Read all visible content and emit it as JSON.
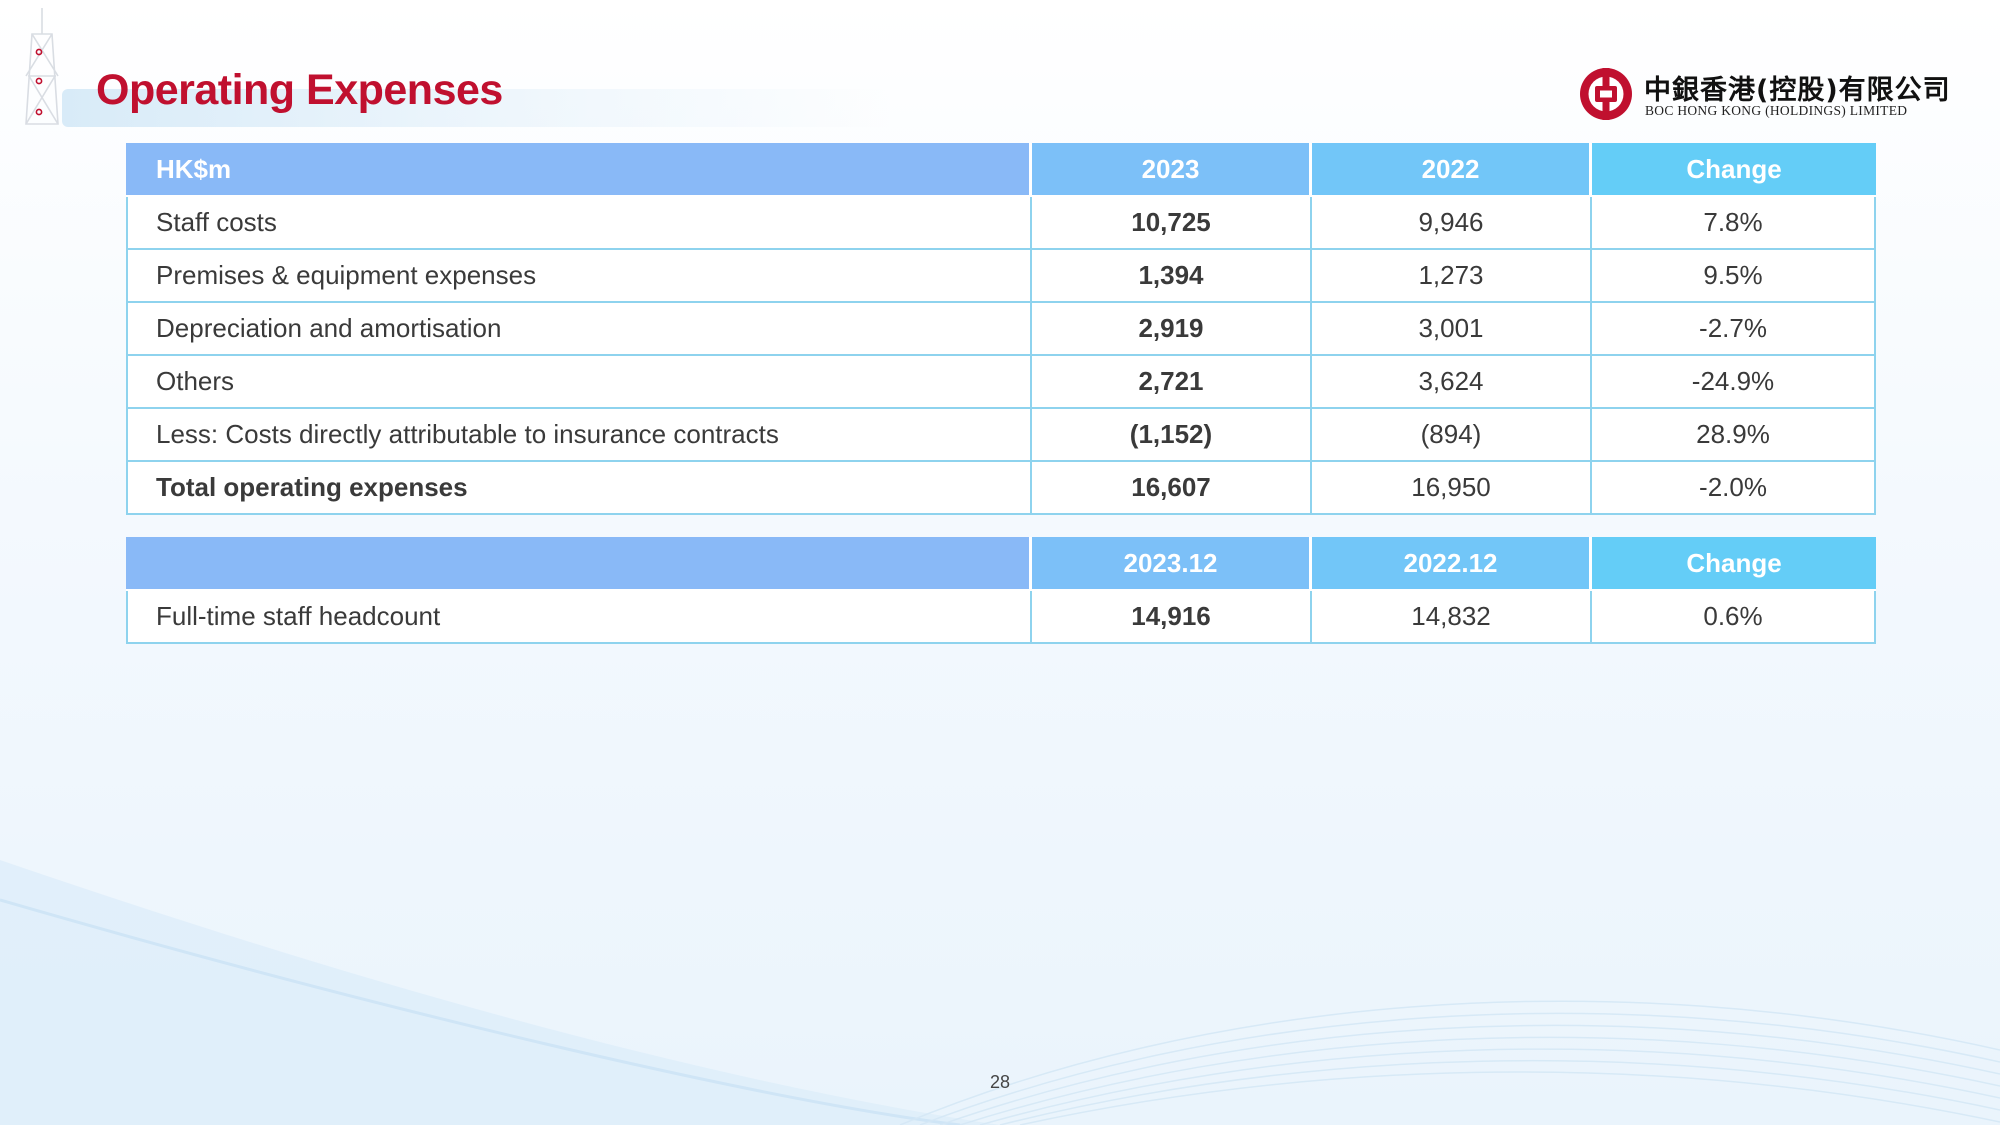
{
  "header": {
    "title": "Operating Expenses",
    "logo_cn": "中銀香港(控股)有限公司",
    "logo_en": "BOC HONG KONG (HOLDINGS) LIMITED",
    "brand_color": "#c0102f"
  },
  "expenses_table": {
    "columns": [
      "HK$m",
      "2023",
      "2022",
      "Change"
    ],
    "rows": [
      {
        "label": "Staff costs",
        "y2023": "10,725",
        "y2022": "9,946",
        "change": "7.8%"
      },
      {
        "label": "Premises & equipment expenses",
        "y2023": "1,394",
        "y2022": "1,273",
        "change": "9.5%"
      },
      {
        "label": "Depreciation and amortisation",
        "y2023": "2,919",
        "y2022": "3,001",
        "change": "-2.7%"
      },
      {
        "label": "Others",
        "y2023": "2,721",
        "y2022": "3,624",
        "change": "-24.9%"
      },
      {
        "label": "Less: Costs directly attributable to insurance contracts",
        "y2023": "(1,152)",
        "y2022": "(894)",
        "change": "28.9%"
      },
      {
        "label": "Total operating expenses",
        "y2023": "16,607",
        "y2022": "16,950",
        "change": "-2.0%"
      }
    ]
  },
  "headcount_table": {
    "columns": [
      "",
      "2023.12",
      "2022.12",
      "Change"
    ],
    "rows": [
      {
        "label": "Full-time staff headcount",
        "y2023": "14,916",
        "y2022": "14,832",
        "change": "0.6%"
      }
    ]
  },
  "footer": {
    "page_number": "28"
  }
}
